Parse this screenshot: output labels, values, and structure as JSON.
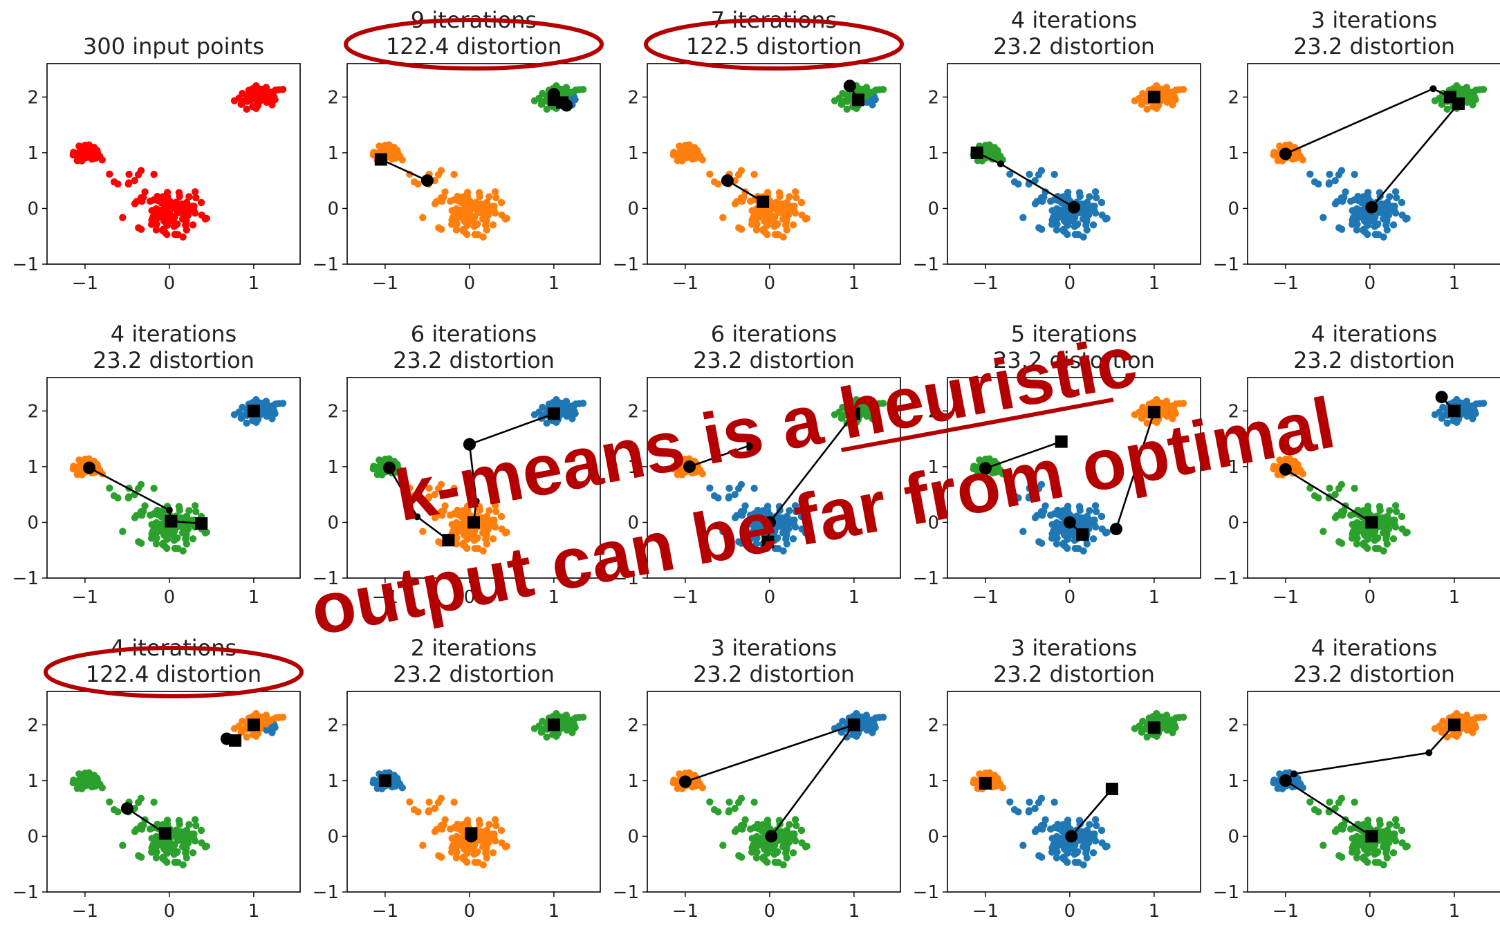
{
  "figure": {
    "rows": 3,
    "cols": 5,
    "x_ticks": [
      -1,
      0,
      1
    ],
    "y_ticks": [
      -1,
      0,
      1,
      2
    ],
    "xlim": [
      -1.45,
      1.55
    ],
    "ylim": [
      -1.0,
      2.6
    ],
    "colors": {
      "red": "#ff0000",
      "orange": "#ff7f0e",
      "blue": "#1f77b4",
      "green": "#2ca02c",
      "black": "#000000"
    }
  },
  "overlay": {
    "line1": "k-means is a heuristic",
    "line2": "output can be far from optimal",
    "color": "#b40000",
    "circled_panels": [
      1,
      2,
      10
    ]
  },
  "chart_data": [
    {
      "type": "scatter",
      "title_lines": [
        "300 input points"
      ],
      "clusters": {
        "left": "red",
        "center": "red",
        "top": "red"
      },
      "path": []
    },
    {
      "type": "scatter",
      "title_lines": [
        "9 iterations",
        "122.4 distortion"
      ],
      "clusters": {
        "left": "orange",
        "center": "orange",
        "top": "green",
        "top_sub": "blue"
      },
      "path": [
        [
          [
            -0.5,
            0.5
          ],
          [
            -1.05,
            0.88
          ]
        ],
        [
          [
            1.0,
            2.05
          ],
          [
            1.0,
            1.95
          ]
        ],
        [
          [
            1.15,
            1.85
          ],
          [
            1.1,
            1.9
          ]
        ]
      ]
    },
    {
      "type": "scatter",
      "title_lines": [
        "7 iterations",
        "122.5 distortion"
      ],
      "clusters": {
        "left": "orange",
        "center": "orange",
        "top": "green",
        "top_sub": "blue"
      },
      "path": [
        [
          [
            -0.5,
            0.5
          ],
          [
            -0.08,
            0.12
          ]
        ],
        [
          [
            0.95,
            2.2
          ],
          [
            1.05,
            1.95
          ]
        ]
      ]
    },
    {
      "type": "scatter",
      "title_lines": [
        "4 iterations",
        "23.2 distortion"
      ],
      "clusters": {
        "left": "green",
        "center": "blue",
        "top": "orange"
      },
      "path": [
        [
          [
            0.05,
            0.02
          ],
          [
            -0.82,
            0.8
          ],
          [
            -1.1,
            1.0
          ]
        ],
        [
          [
            1.0,
            2.0
          ],
          [
            1.0,
            2.0
          ]
        ]
      ]
    },
    {
      "type": "scatter",
      "title_lines": [
        "3 iterations",
        "23.2 distortion"
      ],
      "clusters": {
        "left": "orange",
        "center": "blue",
        "top": "green"
      },
      "path": [
        [
          [
            -1.0,
            0.98
          ],
          [
            0.75,
            2.15
          ],
          [
            0.95,
            2.0
          ]
        ],
        [
          [
            0.02,
            0.02
          ],
          [
            1.05,
            1.88
          ]
        ]
      ]
    },
    {
      "type": "scatter",
      "title_lines": [
        "4 iterations",
        "23.2 distortion"
      ],
      "clusters": {
        "left": "orange",
        "center": "green",
        "top": "blue"
      },
      "path": [
        [
          [
            -0.95,
            0.98
          ],
          [
            0.0,
            0.22
          ],
          [
            0.02,
            0.02
          ]
        ],
        [
          [
            0.02,
            0.02
          ],
          [
            0.38,
            -0.02
          ]
        ],
        [
          [
            1.0,
            2.0
          ],
          [
            1.0,
            2.0
          ]
        ]
      ]
    },
    {
      "type": "scatter",
      "title_lines": [
        "6 iterations",
        "23.2 distortion"
      ],
      "clusters": {
        "left": "green",
        "center": "orange",
        "top": "blue"
      },
      "path": [
        [
          [
            -0.95,
            0.98
          ],
          [
            -0.62,
            0.1
          ],
          [
            -0.25,
            -0.32
          ]
        ],
        [
          [
            0.0,
            1.4
          ],
          [
            0.08,
            0.38
          ],
          [
            0.05,
            0.0
          ]
        ],
        [
          [
            0.0,
            1.4
          ],
          [
            1.0,
            1.95
          ]
        ]
      ]
    },
    {
      "type": "scatter",
      "title_lines": [
        "6 iterations",
        "23.2 distortion"
      ],
      "clusters": {
        "left": "orange",
        "center": "blue",
        "top": "green"
      },
      "path": [
        [
          [
            -0.95,
            1.0
          ],
          [
            -0.2,
            1.4
          ]
        ],
        [
          [
            0.0,
            0.0
          ],
          [
            -0.02,
            -0.35
          ]
        ],
        [
          [
            0.0,
            0.0
          ],
          [
            1.0,
            1.95
          ]
        ]
      ]
    },
    {
      "type": "scatter",
      "title_lines": [
        "5 iterations",
        "23.2 distortion"
      ],
      "clusters": {
        "left": "green",
        "center": "blue",
        "top": "orange"
      },
      "path": [
        [
          [
            -1.0,
            0.97
          ],
          [
            -0.1,
            1.45
          ]
        ],
        [
          [
            0.0,
            0.0
          ],
          [
            0.15,
            -0.22
          ]
        ],
        [
          [
            0.55,
            -0.12
          ],
          [
            1.0,
            1.98
          ]
        ]
      ]
    },
    {
      "type": "scatter",
      "title_lines": [
        "4 iterations",
        "23.2 distortion"
      ],
      "clusters": {
        "left": "orange",
        "center": "green",
        "top": "blue"
      },
      "path": [
        [
          [
            -1.0,
            0.95
          ],
          [
            0.02,
            0.0
          ]
        ],
        [
          [
            0.85,
            2.25
          ],
          [
            1.0,
            2.0
          ]
        ]
      ]
    },
    {
      "type": "scatter",
      "title_lines": [
        "4 iterations",
        "122.4 distortion"
      ],
      "clusters": {
        "left": "green",
        "center": "green",
        "top": "orange",
        "top_sub": "blue"
      },
      "path": [
        [
          [
            -0.5,
            0.5
          ],
          [
            -0.05,
            0.05
          ]
        ],
        [
          [
            0.68,
            1.75
          ],
          [
            0.78,
            1.72
          ]
        ],
        [
          [
            1.0,
            2.0
          ],
          [
            1.0,
            2.0
          ]
        ]
      ]
    },
    {
      "type": "scatter",
      "title_lines": [
        "2 iterations",
        "23.2 distortion"
      ],
      "clusters": {
        "left": "blue",
        "center": "orange",
        "top": "green"
      },
      "path": [
        [
          [
            -1.0,
            1.0
          ],
          [
            -1.0,
            1.0
          ]
        ],
        [
          [
            0.02,
            0.0
          ],
          [
            0.02,
            0.05
          ]
        ],
        [
          [
            1.0,
            2.0
          ],
          [
            1.0,
            2.0
          ]
        ]
      ]
    },
    {
      "type": "scatter",
      "title_lines": [
        "3 iterations",
        "23.2 distortion"
      ],
      "clusters": {
        "left": "orange",
        "center": "green",
        "top": "blue"
      },
      "path": [
        [
          [
            -1.0,
            0.98
          ],
          [
            1.0,
            2.0
          ]
        ],
        [
          [
            0.02,
            0.0
          ],
          [
            1.0,
            2.0
          ]
        ]
      ]
    },
    {
      "type": "scatter",
      "title_lines": [
        "3 iterations",
        "23.2 distortion"
      ],
      "clusters": {
        "left": "orange",
        "center": "blue",
        "top": "green"
      },
      "path": [
        [
          [
            -1.0,
            0.95
          ],
          [
            -1.0,
            0.95
          ]
        ],
        [
          [
            0.02,
            0.0
          ],
          [
            0.5,
            0.85
          ]
        ],
        [
          [
            1.0,
            1.95
          ],
          [
            1.0,
            1.95
          ]
        ]
      ]
    },
    {
      "type": "scatter",
      "title_lines": [
        "4 iterations",
        "23.2 distortion"
      ],
      "clusters": {
        "left": "blue",
        "center": "green",
        "top": "orange"
      },
      "path": [
        [
          [
            -1.0,
            1.0
          ],
          [
            -0.9,
            1.12
          ],
          [
            0.7,
            1.5
          ],
          [
            1.0,
            2.0
          ]
        ],
        [
          [
            -1.0,
            1.0
          ],
          [
            0.02,
            0.0
          ]
        ]
      ]
    }
  ]
}
